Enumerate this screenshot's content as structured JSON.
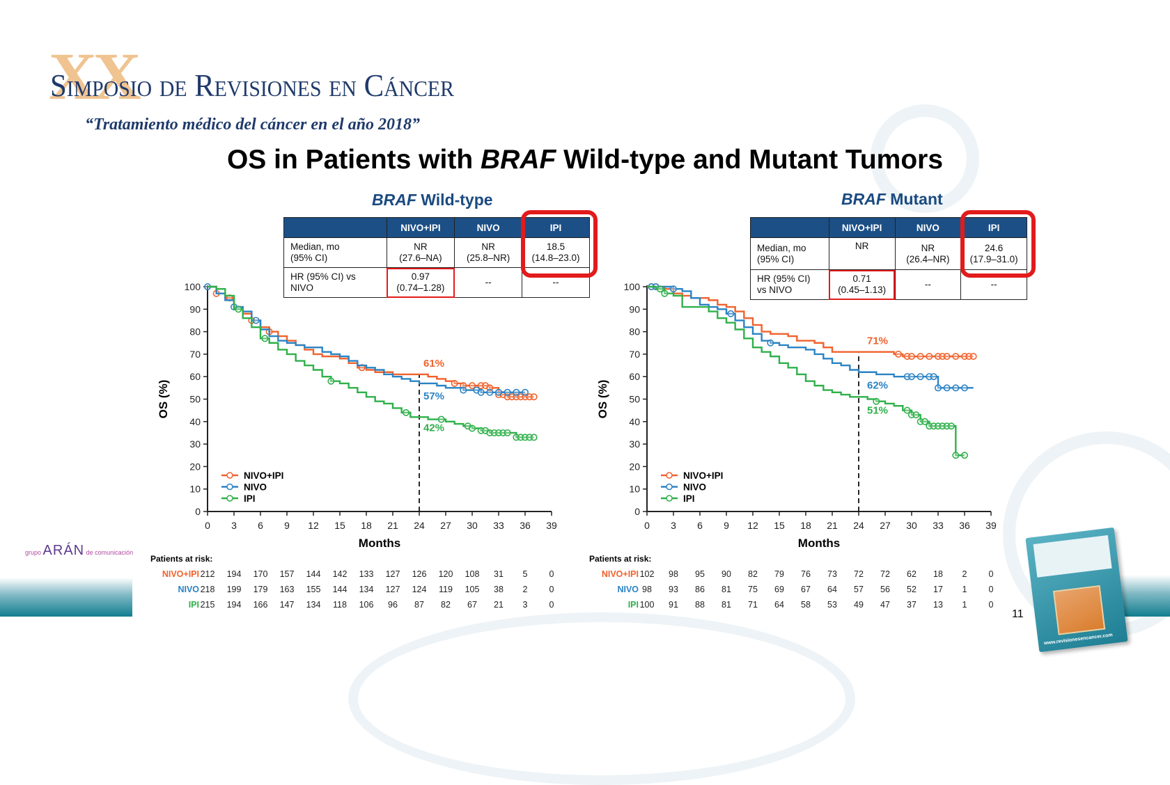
{
  "header": {
    "logo_numeral": "XX",
    "logo_title": "Simposio de Revisiones en Cáncer",
    "logo_subtitle": "“Tratamiento médico del cáncer en el año 2018”"
  },
  "slide_title": {
    "prefix": "OS in Patients with ",
    "italic": "BRAF",
    "suffix": " Wild-type and Mutant Tumors"
  },
  "colors": {
    "nivo_ipi": "#f0622d",
    "nivo": "#2b83c4",
    "ipi": "#2fb04a",
    "table_header": "#1c4f85",
    "highlight": "#e21b1b",
    "title_blue": "#1a4a80"
  },
  "panels": [
    {
      "title_italic": "BRAF",
      "title_rest": " Wild-type",
      "table": {
        "headers": [
          "",
          "NIVO+IPI",
          "NIVO",
          "IPI"
        ],
        "rows": [
          {
            "label_l1": "Median, mo",
            "label_l2": "(95% CI)",
            "cells": [
              [
                "NR",
                "(27.6–NA)"
              ],
              [
                "NR",
                "(25.8–NR)"
              ],
              [
                "18.5",
                "(14.8–23.0)"
              ]
            ]
          },
          {
            "label_l1": "HR (95% CI) vs",
            "label_l2": "NIVO",
            "cells": [
              [
                "0.97",
                "(0.74–1.28)"
              ],
              [
                "--",
                ""
              ],
              [
                "--",
                ""
              ]
            ]
          }
        ]
      },
      "risk": {
        "header": "Patients at risk:",
        "rows": [
          {
            "label": "NIVO+IPI",
            "values": [
              212,
              194,
              170,
              157,
              144,
              142,
              133,
              127,
              126,
              120,
              108,
              31,
              5,
              0
            ]
          },
          {
            "label": "NIVO",
            "values": [
              218,
              199,
              179,
              163,
              155,
              144,
              134,
              127,
              124,
              119,
              105,
              38,
              2,
              0
            ]
          },
          {
            "label": "IPI",
            "values": [
              215,
              194,
              166,
              147,
              134,
              118,
              106,
              96,
              87,
              82,
              67,
              21,
              3,
              0
            ]
          }
        ]
      }
    },
    {
      "title_italic": "BRAF",
      "title_rest": " Mutant",
      "table": {
        "headers": [
          "",
          "NIVO+IPI",
          "NIVO",
          "IPI"
        ],
        "rows": [
          {
            "label_l1": "Median, mo",
            "label_l2": "(95% CI)",
            "cells": [
              [
                "NR",
                ""
              ],
              [
                "NR",
                "(26.4–NR)"
              ],
              [
                "24.6",
                "(17.9–31.0)"
              ]
            ]
          },
          {
            "label_l1": "HR (95% CI)",
            "label_l2": "vs NIVO",
            "cells": [
              [
                "0.71",
                "(0.45–1.13)"
              ],
              [
                "--",
                ""
              ],
              [
                "--",
                ""
              ]
            ]
          }
        ]
      },
      "risk": {
        "header": "Patients at risk:",
        "rows": [
          {
            "label": "NIVO+IPI",
            "values": [
              102,
              98,
              95,
              90,
              82,
              79,
              76,
              73,
              72,
              72,
              62,
              18,
              2,
              0
            ]
          },
          {
            "label": "NIVO",
            "values": [
              98,
              93,
              86,
              81,
              75,
              69,
              67,
              64,
              57,
              56,
              52,
              17,
              1,
              0
            ]
          },
          {
            "label": "IPI",
            "values": [
              100,
              91,
              88,
              81,
              71,
              64,
              58,
              53,
              49,
              47,
              37,
              13,
              1,
              0
            ]
          }
        ]
      }
    }
  ],
  "chart_data": [
    {
      "type": "line",
      "title": "BRAF Wild-type",
      "xlabel": "Months",
      "ylabel": "OS (%)",
      "xlim": [
        0,
        39
      ],
      "ylim": [
        0,
        100
      ],
      "xticks": [
        "0",
        "3",
        "6",
        "9",
        "12",
        "15",
        "18",
        "21",
        "24",
        "27",
        "30",
        "33",
        "36",
        "39"
      ],
      "yticks": [
        "0",
        "10",
        "20",
        "30",
        "40",
        "50",
        "60",
        "70",
        "80",
        "90",
        "100"
      ],
      "reference_line_x": 24,
      "legend": {
        "position": "bottom-left",
        "entries": [
          "NIVO+IPI",
          "NIVO",
          "IPI"
        ]
      },
      "annotations": [
        {
          "text": "61%",
          "series": "NIVO+IPI",
          "x": 24,
          "y": 61
        },
        {
          "text": "57%",
          "series": "NIVO",
          "x": 24,
          "y": 57
        },
        {
          "text": "42%",
          "series": "IPI",
          "x": 24,
          "y": 42
        }
      ],
      "series": [
        {
          "name": "NIVO+IPI",
          "color": "#f0622d",
          "x": [
            0,
            1,
            2,
            3,
            4,
            5,
            6,
            7,
            8,
            9,
            10,
            11,
            12,
            13,
            14,
            15,
            16,
            17,
            18,
            19,
            20,
            21,
            22,
            23,
            24,
            25,
            26,
            27,
            28,
            29,
            30,
            31,
            32,
            33,
            34,
            35,
            36,
            37
          ],
          "y": [
            100,
            97,
            95,
            91,
            88,
            85,
            82,
            80,
            78,
            76,
            74,
            72,
            70,
            69,
            69,
            68,
            66,
            64,
            63,
            62,
            62,
            61,
            61,
            61,
            61,
            60,
            59,
            58,
            57,
            56,
            56,
            56,
            55,
            52,
            51,
            51,
            51,
            51
          ],
          "censor_x": [
            1,
            2.5,
            5,
            7,
            17.5,
            28,
            29,
            30,
            31,
            31.5,
            32,
            33,
            33.5,
            34,
            34.5,
            35,
            35.5,
            36,
            36.5,
            37
          ]
        },
        {
          "name": "NIVO",
          "color": "#2b83c4",
          "x": [
            0,
            1,
            2,
            3,
            4,
            5,
            6,
            7,
            8,
            9,
            10,
            11,
            12,
            13,
            14,
            15,
            16,
            17,
            18,
            19,
            20,
            21,
            22,
            23,
            24,
            25,
            26,
            27,
            28,
            29,
            30,
            31,
            32,
            33,
            34,
            35,
            36
          ],
          "y": [
            100,
            97,
            94,
            91,
            89,
            85,
            81,
            78,
            76,
            75,
            74,
            73,
            73,
            71,
            70,
            69,
            67,
            65,
            64,
            63,
            61,
            60,
            59,
            58,
            57,
            57,
            56,
            55,
            55,
            54,
            54,
            53,
            53,
            53,
            53,
            53,
            53
          ],
          "censor_x": [
            0,
            3,
            5.5,
            29,
            30.5,
            31,
            32,
            33,
            34,
            35,
            36
          ]
        },
        {
          "name": "IPI",
          "color": "#2fb04a",
          "x": [
            0,
            1,
            2,
            3,
            4,
            5,
            6,
            7,
            8,
            9,
            10,
            11,
            12,
            13,
            14,
            15,
            16,
            17,
            18,
            19,
            20,
            21,
            22,
            23,
            24,
            25,
            26,
            27,
            28,
            29,
            30,
            31,
            32,
            33,
            34,
            35,
            36,
            37
          ],
          "y": [
            100,
            99,
            96,
            90,
            86,
            82,
            77,
            75,
            72,
            70,
            67,
            65,
            63,
            60,
            58,
            57,
            55,
            53,
            51,
            49,
            48,
            46,
            44,
            42,
            42,
            41,
            41,
            40,
            39,
            38,
            37,
            36,
            35,
            35,
            35,
            33,
            33,
            33
          ],
          "censor_x": [
            3.5,
            6.5,
            14,
            22.5,
            26.5,
            29.5,
            30,
            31,
            31.5,
            32,
            32.5,
            33,
            33.5,
            34,
            35,
            35.5,
            36,
            36.5,
            37
          ]
        }
      ]
    },
    {
      "type": "line",
      "title": "BRAF Mutant",
      "xlabel": "Months",
      "ylabel": "OS (%)",
      "xlim": [
        0,
        39
      ],
      "ylim": [
        0,
        100
      ],
      "xticks": [
        "0",
        "3",
        "6",
        "9",
        "12",
        "15",
        "18",
        "21",
        "24",
        "27",
        "30",
        "33",
        "36",
        "39"
      ],
      "yticks": [
        "0",
        "10",
        "20",
        "30",
        "40",
        "50",
        "60",
        "70",
        "80",
        "90",
        "100"
      ],
      "reference_line_x": 24,
      "legend": {
        "position": "bottom-left",
        "entries": [
          "NIVO+IPI",
          "NIVO",
          "IPI"
        ]
      },
      "annotations": [
        {
          "text": "71%",
          "series": "NIVO+IPI",
          "x": 24,
          "y": 71
        },
        {
          "text": "62%",
          "series": "NIVO",
          "x": 24,
          "y": 62
        },
        {
          "text": "51%",
          "series": "IPI",
          "x": 24,
          "y": 51
        }
      ],
      "series": [
        {
          "name": "NIVO+IPI",
          "color": "#f0622d",
          "x": [
            0,
            1,
            2,
            3,
            4,
            5,
            6,
            7,
            8,
            9,
            10,
            11,
            12,
            13,
            14,
            15,
            16,
            17,
            18,
            19,
            20,
            21,
            22,
            23,
            24,
            25,
            26,
            27,
            28,
            29,
            30,
            31,
            32,
            33,
            34,
            35,
            36,
            37
          ],
          "y": [
            100,
            100,
            99,
            97,
            96,
            95,
            95,
            94,
            92,
            91,
            89,
            86,
            83,
            80,
            79,
            79,
            78,
            76,
            76,
            75,
            73,
            71,
            71,
            71,
            71,
            71,
            71,
            71,
            70,
            69,
            69,
            69,
            69,
            69,
            69,
            69,
            69,
            69
          ],
          "censor_x": [
            0.5,
            1,
            28.5,
            29.5,
            30,
            31,
            32,
            33,
            33.5,
            34,
            35,
            36,
            36.5,
            37
          ]
        },
        {
          "name": "NIVO",
          "color": "#2b83c4",
          "x": [
            0,
            1,
            2,
            3,
            4,
            5,
            6,
            7,
            8,
            9,
            10,
            11,
            12,
            13,
            14,
            15,
            16,
            17,
            18,
            19,
            20,
            21,
            22,
            23,
            24,
            25,
            26,
            27,
            28,
            29,
            30,
            31,
            32,
            33,
            34,
            35,
            36,
            37
          ],
          "y": [
            100,
            100,
            100,
            99,
            98,
            95,
            92,
            91,
            90,
            88,
            85,
            82,
            79,
            76,
            75,
            74,
            73,
            73,
            72,
            70,
            68,
            66,
            65,
            63,
            62,
            62,
            61,
            61,
            60,
            60,
            60,
            60,
            60,
            55,
            55,
            55,
            55,
            55
          ],
          "censor_x": [
            0.5,
            1,
            3,
            9.5,
            14,
            29.5,
            30,
            31,
            32,
            32.5,
            33,
            34,
            35,
            36
          ]
        },
        {
          "name": "IPI",
          "color": "#2fb04a",
          "x": [
            0,
            1,
            2,
            3,
            4,
            5,
            6,
            7,
            8,
            9,
            10,
            11,
            12,
            13,
            14,
            15,
            16,
            17,
            18,
            19,
            20,
            21,
            22,
            23,
            24,
            25,
            26,
            27,
            28,
            29,
            30,
            31,
            32,
            33,
            34,
            35,
            36
          ],
          "y": [
            100,
            99,
            97,
            96,
            91,
            91,
            91,
            89,
            86,
            84,
            81,
            77,
            73,
            71,
            69,
            66,
            64,
            61,
            58,
            56,
            54,
            53,
            52,
            51,
            51,
            50,
            49,
            48,
            47,
            45,
            43,
            40,
            38,
            38,
            38,
            25,
            25
          ],
          "censor_x": [
            1.5,
            2,
            26,
            29.5,
            30,
            30.5,
            31,
            31.5,
            32,
            32.5,
            33,
            33.5,
            34,
            34.5,
            35,
            36
          ]
        }
      ]
    }
  ]
}
